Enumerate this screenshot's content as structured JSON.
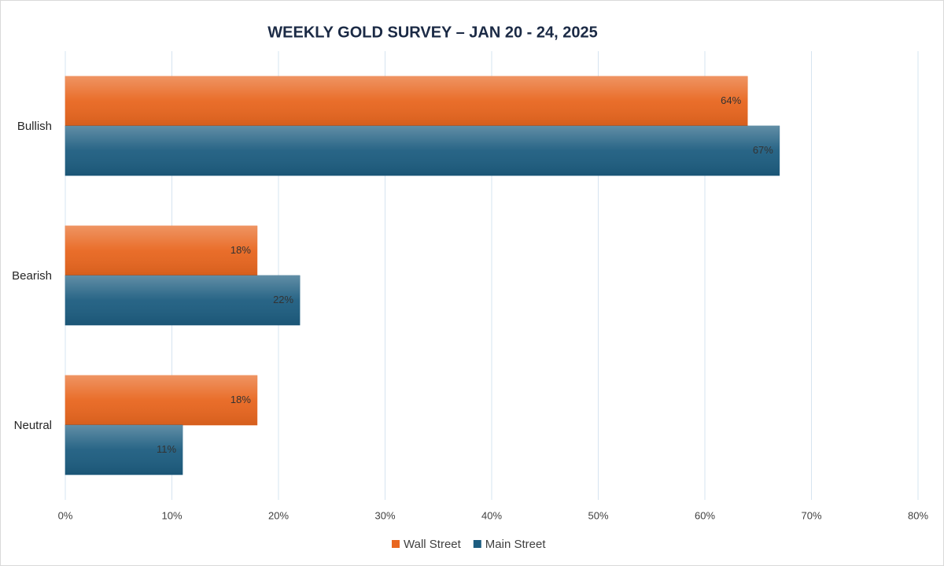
{
  "chart_data": {
    "type": "bar",
    "orientation": "horizontal",
    "title": "WEEKLY GOLD SURVEY – JAN 20 - 24, 2025",
    "categories": [
      "Bullish",
      "Bearish",
      "Neutral"
    ],
    "series": [
      {
        "name": "Wall Street",
        "color": "#e8661f",
        "values": [
          64,
          18,
          18
        ],
        "value_labels": [
          "64%",
          "18%",
          "18%"
        ]
      },
      {
        "name": "Main Street",
        "color": "#1d5d80",
        "values": [
          67,
          22,
          11
        ],
        "value_labels": [
          "67%",
          "22%",
          "11%"
        ]
      }
    ],
    "xlim": [
      0,
      80
    ],
    "xticks": [
      {
        "value": 0,
        "label": "0%"
      },
      {
        "value": 10,
        "label": "10%"
      },
      {
        "value": 20,
        "label": "20%"
      },
      {
        "value": 30,
        "label": "30%"
      },
      {
        "value": 40,
        "label": "40%"
      },
      {
        "value": 50,
        "label": "50%"
      },
      {
        "value": 60,
        "label": "60%"
      },
      {
        "value": 70,
        "label": "70%"
      },
      {
        "value": 80,
        "label": "80%"
      }
    ],
    "grid": true,
    "legend": "bottom"
  }
}
